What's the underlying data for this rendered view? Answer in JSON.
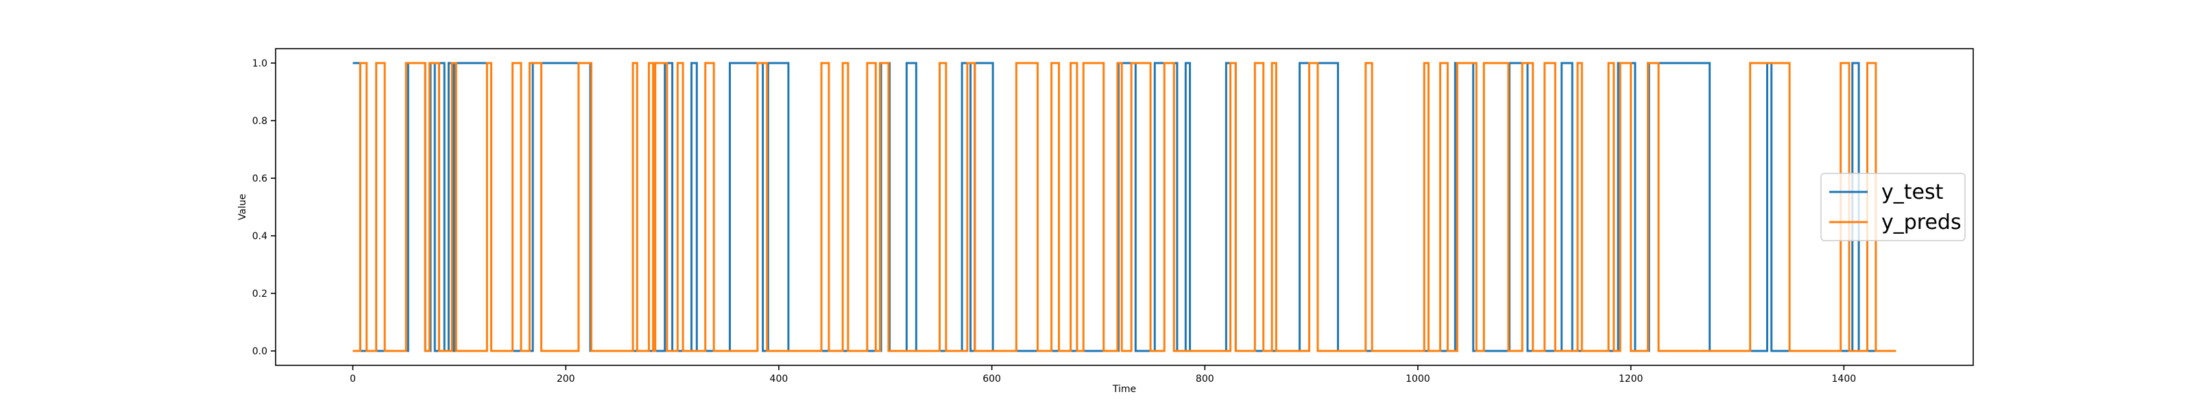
{
  "chart_data": {
    "type": "line",
    "drawstyle": "steps-post",
    "xlabel": "Time",
    "ylabel": "Value",
    "xlim": [
      -72.45,
      1521.45
    ],
    "ylim": [
      -0.05,
      1.05
    ],
    "xticks": [
      0,
      200,
      400,
      600,
      800,
      1000,
      1200,
      1400
    ],
    "yticks": [
      {
        "value": 0,
        "label": "0.0"
      },
      {
        "value": 0.2,
        "label": "0.2"
      },
      {
        "value": 0.4,
        "label": "0.4"
      },
      {
        "value": 0.6,
        "label": "0.6"
      },
      {
        "value": 0.8,
        "label": "0.8"
      },
      {
        "value": 1,
        "label": "1.0"
      }
    ],
    "legend": "center right",
    "grid": false,
    "series": [
      {
        "name": "y_test",
        "color": "#1f77b4",
        "x": [
          0,
          7,
          52,
          68,
          73,
          77,
          81,
          86,
          90,
          94,
          96,
          130,
          169,
          223,
          293,
          300,
          318,
          323,
          354,
          385,
          390,
          409,
          496,
          504,
          520,
          529,
          572,
          580,
          584,
          601,
          719,
          735,
          753,
          774,
          782,
          786,
          820,
          829,
          889,
          925,
          1035,
          1052,
          1086,
          1103,
          1135,
          1145,
          1188,
          1204,
          1217,
          1274,
          1328,
          1332,
          1408,
          1414,
          1449
        ],
        "values": [
          1,
          0,
          1,
          0,
          1,
          0,
          1,
          0,
          1,
          0,
          1,
          0,
          1,
          0,
          1,
          0,
          1,
          0,
          1,
          0,
          1,
          0,
          1,
          0,
          1,
          0,
          1,
          0,
          1,
          0,
          1,
          0,
          1,
          0,
          1,
          0,
          1,
          0,
          1,
          0,
          1,
          0,
          1,
          0,
          1,
          0,
          1,
          0,
          1,
          0,
          1,
          0,
          1,
          0,
          0
        ]
      },
      {
        "name": "y_preds",
        "color": "#ff7f0e",
        "x": [
          0,
          7,
          13,
          22,
          30,
          50,
          68,
          72,
          81,
          93,
          97,
          126,
          130,
          150,
          158,
          166,
          177,
          212,
          224,
          263,
          267,
          278,
          282,
          284,
          295,
          305,
          310,
          331,
          339,
          380,
          389,
          440,
          447,
          460,
          465,
          483,
          491,
          495,
          503,
          551,
          557,
          577,
          584,
          623,
          643,
          656,
          663,
          674,
          680,
          686,
          705,
          718,
          722,
          731,
          749,
          762,
          771,
          824,
          829,
          847,
          855,
          863,
          867,
          898,
          906,
          951,
          957,
          1006,
          1010,
          1021,
          1028,
          1037,
          1055,
          1062,
          1085,
          1098,
          1108,
          1119,
          1129,
          1150,
          1154,
          1179,
          1184,
          1190,
          1200,
          1216,
          1226,
          1312,
          1349,
          1397,
          1405,
          1422,
          1430,
          1449
        ],
        "values": [
          0,
          1,
          0,
          1,
          0,
          1,
          0,
          1,
          0,
          1,
          0,
          1,
          0,
          1,
          0,
          1,
          0,
          1,
          0,
          1,
          0,
          1,
          0,
          1,
          0,
          1,
          0,
          1,
          0,
          1,
          0,
          1,
          0,
          1,
          0,
          1,
          0,
          1,
          0,
          1,
          0,
          1,
          0,
          1,
          0,
          1,
          0,
          1,
          0,
          1,
          0,
          1,
          0,
          1,
          0,
          1,
          0,
          1,
          0,
          1,
          0,
          1,
          0,
          1,
          0,
          1,
          0,
          1,
          0,
          1,
          0,
          1,
          0,
          1,
          0,
          1,
          0,
          1,
          0,
          1,
          0,
          1,
          0,
          1,
          0,
          1,
          0,
          1,
          0,
          1,
          0,
          1,
          0,
          0
        ]
      }
    ]
  }
}
